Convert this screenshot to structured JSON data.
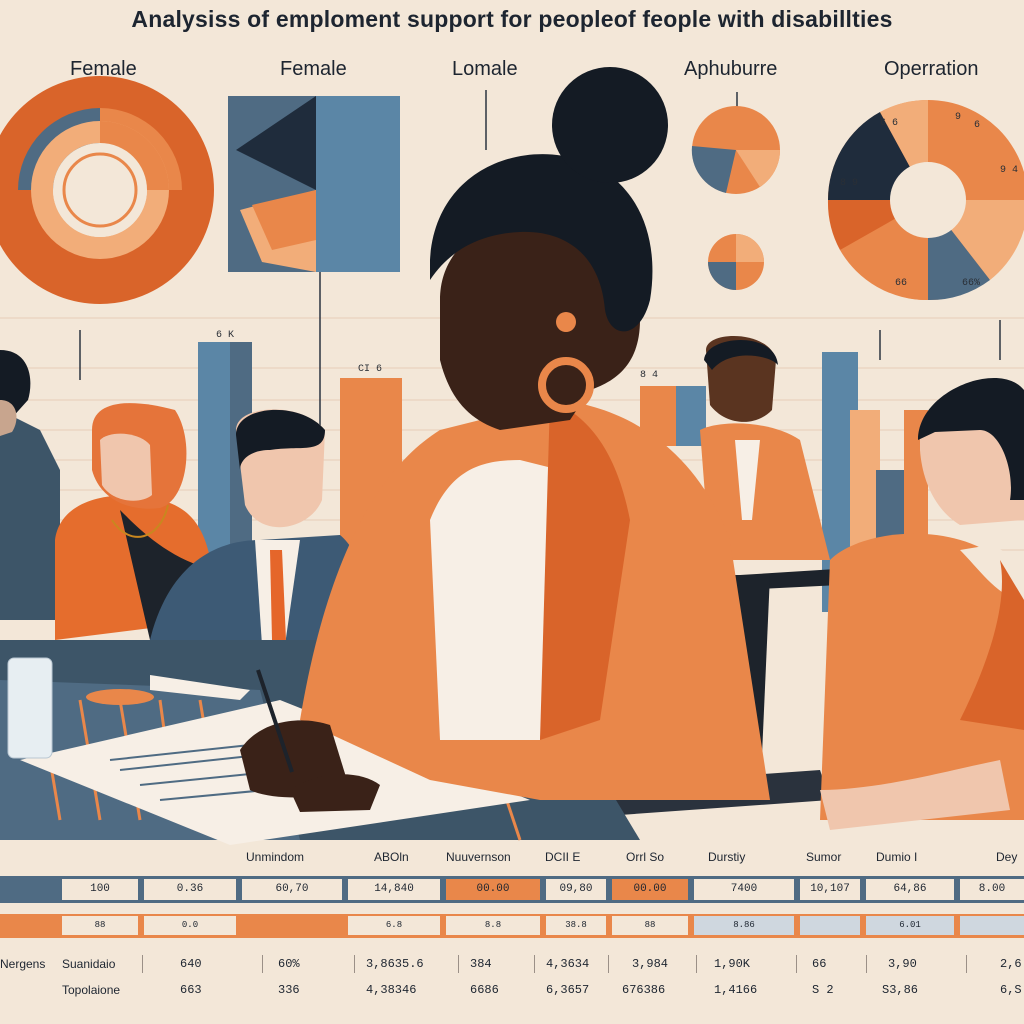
{
  "title": "Analysiss of emploment support for peopleof feople with disabillties",
  "pie_labels": [
    "Female",
    "Female",
    "Lomale",
    "Aphuburre",
    "Operration"
  ],
  "bar_value_labels": [
    "6 K",
    "CI 6",
    "8 4"
  ],
  "donut_value_labels": [
    "6 6",
    "9",
    "6",
    "9 4",
    "8 9",
    "66",
    "66%"
  ],
  "colors": {
    "orange": "#e9874a",
    "deep_orange": "#d9642a",
    "light_orange": "#f2ad79",
    "blue": "#4f6b83",
    "slate": "#5b86a6",
    "navy": "#1f2c3c",
    "cream": "#f3e7d8"
  },
  "table": {
    "headers": [
      "Unmindom",
      "ABOln",
      "Nuuvernson",
      "DCII E",
      "Orrl So",
      "Durstiy",
      "Sumor",
      "Dumio I",
      "Dey"
    ],
    "band1": [
      "100",
      "0.36",
      "60,70",
      "14,840",
      "00.00",
      "09,80",
      "00.00",
      "7400",
      "10,107",
      "64,86",
      "8.00"
    ],
    "band2": [
      "88",
      "0.0",
      "",
      "6.8",
      "8.8",
      "38.8",
      "88",
      "8.86",
      "",
      "6.01",
      ""
    ],
    "rows": [
      {
        "label": "Suanidaio",
        "prefix": "Nergens",
        "values": [
          "640",
          "60%",
          "3,8635.6",
          "384",
          "4,3634",
          "3,984",
          "1,90K",
          "66",
          "3,90",
          "2,6"
        ]
      },
      {
        "label": "Topolaione",
        "prefix": "",
        "values": [
          "663",
          "336",
          "4,38346",
          "6686",
          "6,3657",
          "676386",
          "1,4166",
          "S 2",
          "S3,86",
          "6,S"
        ]
      }
    ]
  }
}
